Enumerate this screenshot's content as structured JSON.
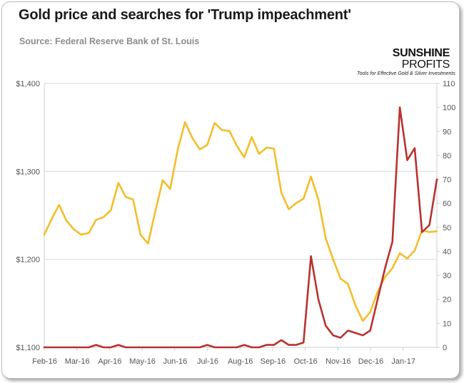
{
  "title": "Gold price and searches for 'Trump impeachment'",
  "source": "Source: Federal Reserve Bank of St. Louis",
  "logo": {
    "brand_bold": "SUNSHINE",
    "brand_light": "PROFITS",
    "tagline": "Tools for Effective Gold & Silver Investments"
  },
  "chart_data": {
    "type": "line",
    "title": "Gold price and searches for 'Trump impeachment'",
    "x_tick_labels": [
      "Feb-16",
      "Mar-16",
      "Apr-16",
      "May-16",
      "Jun-16",
      "Jul-16",
      "Aug-16",
      "Sep-16",
      "Oct-16",
      "Nov-16",
      "Dec-16",
      "Jan-17"
    ],
    "y_left": {
      "ylim": [
        1100,
        1400
      ],
      "ticks": [
        1100,
        1200,
        1300,
        1400
      ],
      "tick_labels": [
        "$1,100",
        "$1,200",
        "$1,300",
        "$1,400"
      ]
    },
    "y_right": {
      "ylim": [
        0,
        110
      ],
      "ticks": [
        0,
        10,
        20,
        30,
        40,
        50,
        60,
        70,
        80,
        90,
        100,
        110
      ],
      "tick_labels": [
        "0",
        "10",
        "20",
        "30",
        "40",
        "50",
        "60",
        "70",
        "80",
        "90",
        "100",
        "110"
      ]
    },
    "x_index_range": [
      0,
      53
    ],
    "grid": "horizontal",
    "series": [
      {
        "axis": "left",
        "color": "#f2be2c",
        "values": [
          1228,
          1246,
          1262,
          1244,
          1234,
          1228,
          1230,
          1245,
          1248,
          1256,
          1287,
          1271,
          1268,
          1228,
          1218,
          1255,
          1290,
          1280,
          1324,
          1356,
          1338,
          1325,
          1330,
          1355,
          1347,
          1346,
          1329,
          1316,
          1339,
          1320,
          1327,
          1326,
          1276,
          1257,
          1264,
          1269,
          1294,
          1268,
          1224,
          1200,
          1178,
          1172,
          1148,
          1130,
          1140,
          1163,
          1180,
          1190,
          1207,
          1201,
          1210,
          1233,
          1231,
          1232
        ]
      },
      {
        "axis": "right",
        "color": "#b8322f",
        "values": [
          0,
          0,
          0,
          0,
          0,
          0,
          0,
          1,
          0,
          0,
          1,
          0,
          0,
          0,
          0,
          0,
          0,
          0,
          0,
          0,
          0,
          0,
          1,
          0,
          0,
          0,
          0,
          1,
          0,
          0,
          1,
          1,
          3,
          1,
          1,
          2,
          38,
          20,
          9,
          5,
          4,
          7,
          6,
          5,
          7,
          20,
          33,
          44,
          100,
          78,
          83,
          48,
          51,
          70
        ]
      }
    ]
  }
}
